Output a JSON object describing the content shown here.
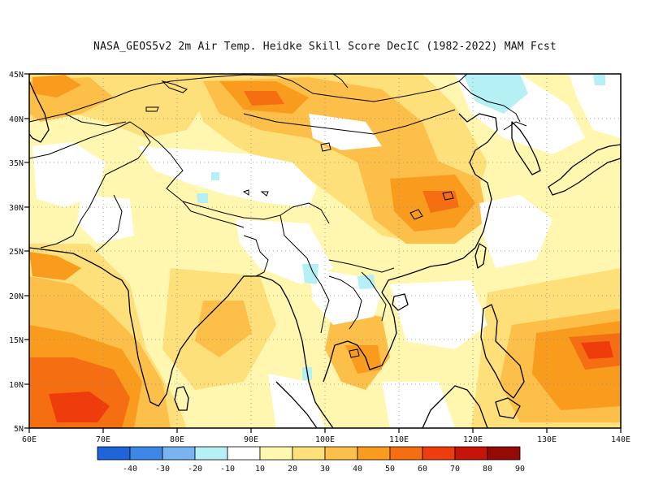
{
  "title": "NASA_GEOS5v2  2m Air Temp. Heidke Skill Score DecIC (1982-2022) MAM Fcst",
  "map": {
    "lon_ticks": [
      "60E",
      "70E",
      "80E",
      "90E",
      "100E",
      "110E",
      "120E",
      "130E",
      "140E"
    ],
    "lat_ticks": [
      "45N",
      "40N",
      "35N",
      "30N",
      "25N",
      "20N",
      "15N",
      "10N",
      "5N"
    ],
    "lon_range": [
      60,
      140
    ],
    "lat_range": [
      5,
      45
    ],
    "grid": "dotted"
  },
  "colorbar": {
    "labels": [
      "-40",
      "-30",
      "-20",
      "-10",
      "10",
      "20",
      "30",
      "40",
      "50",
      "60",
      "70",
      "80",
      "90"
    ],
    "colors": [
      "#1f64d8",
      "#3d87e6",
      "#79b3f0",
      "#b5f0f4",
      "#ffffff",
      "#fff7b0",
      "#fde07a",
      "#fbbf4a",
      "#f99b1c",
      "#f56e12",
      "#ee3c0c",
      "#c51408",
      "#960a06"
    ]
  },
  "colors": {
    "coast": "#000000",
    "white_region": "#ffffff",
    "pale_yellow": "#fff7b0",
    "yellow": "#fde07a",
    "light_orange": "#fbbf4a",
    "orange": "#f99b1c",
    "dark_orange": "#f56e12",
    "red": "#ee3c0c",
    "light_blue": "#b5f0f4"
  }
}
